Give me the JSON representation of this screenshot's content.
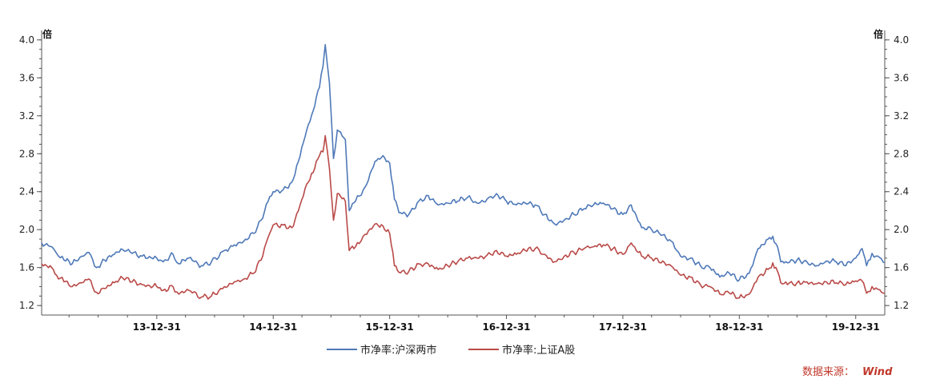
{
  "chart_data": {
    "type": "line",
    "y_unit_left": "倍",
    "y_unit_right": "倍",
    "ylim": [
      1.1,
      4.1
    ],
    "yticks": [
      "4.0",
      "3.6",
      "3.2",
      "2.8",
      "2.4",
      "2.0",
      "1.6",
      "1.2"
    ],
    "x_range": [
      "2013-01-04",
      "2020-03-31"
    ],
    "xticks": [
      {
        "date": "2013-12-31",
        "label": "13-12-31"
      },
      {
        "date": "2014-12-31",
        "label": "14-12-31"
      },
      {
        "date": "2015-12-31",
        "label": "15-12-31"
      },
      {
        "date": "2016-12-31",
        "label": "16-12-31"
      },
      {
        "date": "2017-12-31",
        "label": "17-12-31"
      },
      {
        "date": "2018-12-31",
        "label": "18-12-31"
      },
      {
        "date": "2019-12-31",
        "label": "19-12-31"
      }
    ],
    "series": [
      {
        "name": "市净率:沪深两市",
        "color": "#4f79b8",
        "points": [
          [
            "2013-01-04",
            1.86
          ],
          [
            "2013-02-05",
            1.82
          ],
          [
            "2013-02-20",
            1.75
          ],
          [
            "2013-03-15",
            1.68
          ],
          [
            "2013-04-10",
            1.64
          ],
          [
            "2013-05-10",
            1.72
          ],
          [
            "2013-06-01",
            1.76
          ],
          [
            "2013-06-25",
            1.6
          ],
          [
            "2013-07-20",
            1.68
          ],
          [
            "2013-08-20",
            1.74
          ],
          [
            "2013-09-15",
            1.79
          ],
          [
            "2013-10-15",
            1.75
          ],
          [
            "2013-11-15",
            1.72
          ],
          [
            "2013-12-31",
            1.7
          ],
          [
            "2014-01-20",
            1.66
          ],
          [
            "2014-02-20",
            1.74
          ],
          [
            "2014-03-10",
            1.64
          ],
          [
            "2014-04-10",
            1.7
          ],
          [
            "2014-05-20",
            1.62
          ],
          [
            "2014-06-20",
            1.66
          ],
          [
            "2014-07-31",
            1.78
          ],
          [
            "2014-08-31",
            1.84
          ],
          [
            "2014-09-30",
            1.88
          ],
          [
            "2014-10-31",
            1.96
          ],
          [
            "2014-11-28",
            2.12
          ],
          [
            "2014-12-15",
            2.3
          ],
          [
            "2014-12-31",
            2.4
          ],
          [
            "2015-01-31",
            2.42
          ],
          [
            "2015-02-27",
            2.5
          ],
          [
            "2015-03-20",
            2.72
          ],
          [
            "2015-04-15",
            3.05
          ],
          [
            "2015-05-05",
            3.25
          ],
          [
            "2015-05-25",
            3.5
          ],
          [
            "2015-06-05",
            3.72
          ],
          [
            "2015-06-12",
            3.95
          ],
          [
            "2015-06-25",
            3.55
          ],
          [
            "2015-07-08",
            2.75
          ],
          [
            "2015-07-20",
            3.05
          ],
          [
            "2015-08-14",
            2.95
          ],
          [
            "2015-08-26",
            2.2
          ],
          [
            "2015-09-15",
            2.3
          ],
          [
            "2015-10-15",
            2.45
          ],
          [
            "2015-11-15",
            2.72
          ],
          [
            "2015-12-10",
            2.78
          ],
          [
            "2015-12-31",
            2.7
          ],
          [
            "2016-01-15",
            2.32
          ],
          [
            "2016-01-29",
            2.18
          ],
          [
            "2016-02-29",
            2.16
          ],
          [
            "2016-03-31",
            2.3
          ],
          [
            "2016-04-30",
            2.36
          ],
          [
            "2016-05-31",
            2.26
          ],
          [
            "2016-06-30",
            2.28
          ],
          [
            "2016-07-31",
            2.3
          ],
          [
            "2016-08-31",
            2.34
          ],
          [
            "2016-09-30",
            2.28
          ],
          [
            "2016-10-31",
            2.32
          ],
          [
            "2016-11-30",
            2.38
          ],
          [
            "2016-12-31",
            2.3
          ],
          [
            "2017-01-31",
            2.26
          ],
          [
            "2017-02-28",
            2.28
          ],
          [
            "2017-03-31",
            2.26
          ],
          [
            "2017-04-30",
            2.16
          ],
          [
            "2017-05-31",
            2.06
          ],
          [
            "2017-06-30",
            2.1
          ],
          [
            "2017-07-31",
            2.16
          ],
          [
            "2017-08-31",
            2.22
          ],
          [
            "2017-09-30",
            2.26
          ],
          [
            "2017-10-31",
            2.28
          ],
          [
            "2017-11-30",
            2.22
          ],
          [
            "2017-12-31",
            2.16
          ],
          [
            "2018-01-26",
            2.26
          ],
          [
            "2018-02-28",
            2.02
          ],
          [
            "2018-03-31",
            2.0
          ],
          [
            "2018-04-30",
            1.94
          ],
          [
            "2018-05-31",
            1.88
          ],
          [
            "2018-06-30",
            1.72
          ],
          [
            "2018-07-31",
            1.7
          ],
          [
            "2018-08-31",
            1.62
          ],
          [
            "2018-09-30",
            1.6
          ],
          [
            "2018-10-31",
            1.5
          ],
          [
            "2018-11-30",
            1.54
          ],
          [
            "2018-12-31",
            1.47
          ],
          [
            "2019-01-31",
            1.54
          ],
          [
            "2019-02-28",
            1.8
          ],
          [
            "2019-03-31",
            1.9
          ],
          [
            "2019-04-15",
            1.93
          ],
          [
            "2019-04-30",
            1.82
          ],
          [
            "2019-05-10",
            1.66
          ],
          [
            "2019-05-31",
            1.65
          ],
          [
            "2019-06-30",
            1.68
          ],
          [
            "2019-07-31",
            1.66
          ],
          [
            "2019-08-31",
            1.62
          ],
          [
            "2019-09-30",
            1.67
          ],
          [
            "2019-10-31",
            1.66
          ],
          [
            "2019-11-30",
            1.62
          ],
          [
            "2019-12-31",
            1.7
          ],
          [
            "2020-01-20",
            1.8
          ],
          [
            "2020-02-03",
            1.62
          ],
          [
            "2020-02-20",
            1.75
          ],
          [
            "2020-03-10",
            1.72
          ],
          [
            "2020-03-31",
            1.65
          ]
        ]
      },
      {
        "name": "市净率:上证A股",
        "color": "#b94a48",
        "points": [
          [
            "2013-01-04",
            1.64
          ],
          [
            "2013-02-05",
            1.6
          ],
          [
            "2013-02-20",
            1.52
          ],
          [
            "2013-03-15",
            1.45
          ],
          [
            "2013-04-10",
            1.4
          ],
          [
            "2013-05-10",
            1.44
          ],
          [
            "2013-06-01",
            1.48
          ],
          [
            "2013-06-25",
            1.34
          ],
          [
            "2013-07-20",
            1.38
          ],
          [
            "2013-08-20",
            1.44
          ],
          [
            "2013-09-15",
            1.49
          ],
          [
            "2013-10-15",
            1.45
          ],
          [
            "2013-11-15",
            1.42
          ],
          [
            "2013-12-31",
            1.4
          ],
          [
            "2014-01-20",
            1.36
          ],
          [
            "2014-02-20",
            1.4
          ],
          [
            "2014-03-10",
            1.32
          ],
          [
            "2014-04-10",
            1.36
          ],
          [
            "2014-05-20",
            1.29
          ],
          [
            "2014-06-20",
            1.3
          ],
          [
            "2014-07-31",
            1.4
          ],
          [
            "2014-08-31",
            1.45
          ],
          [
            "2014-09-30",
            1.48
          ],
          [
            "2014-10-31",
            1.54
          ],
          [
            "2014-11-28",
            1.72
          ],
          [
            "2014-12-15",
            1.92
          ],
          [
            "2014-12-31",
            2.05
          ],
          [
            "2015-01-31",
            2.05
          ],
          [
            "2015-02-27",
            2.02
          ],
          [
            "2015-03-20",
            2.2
          ],
          [
            "2015-04-15",
            2.48
          ],
          [
            "2015-05-05",
            2.6
          ],
          [
            "2015-05-25",
            2.78
          ],
          [
            "2015-06-05",
            2.82
          ],
          [
            "2015-06-12",
            2.99
          ],
          [
            "2015-06-25",
            2.65
          ],
          [
            "2015-07-08",
            2.1
          ],
          [
            "2015-07-20",
            2.38
          ],
          [
            "2015-08-14",
            2.3
          ],
          [
            "2015-08-26",
            1.78
          ],
          [
            "2015-09-15",
            1.82
          ],
          [
            "2015-10-15",
            1.95
          ],
          [
            "2015-11-15",
            2.06
          ],
          [
            "2015-12-10",
            2.04
          ],
          [
            "2015-12-31",
            1.96
          ],
          [
            "2016-01-15",
            1.62
          ],
          [
            "2016-01-29",
            1.55
          ],
          [
            "2016-02-29",
            1.56
          ],
          [
            "2016-03-31",
            1.64
          ],
          [
            "2016-04-30",
            1.64
          ],
          [
            "2016-05-31",
            1.58
          ],
          [
            "2016-06-30",
            1.62
          ],
          [
            "2016-07-31",
            1.66
          ],
          [
            "2016-08-31",
            1.7
          ],
          [
            "2016-09-30",
            1.7
          ],
          [
            "2016-10-31",
            1.73
          ],
          [
            "2016-11-30",
            1.78
          ],
          [
            "2016-12-31",
            1.72
          ],
          [
            "2017-01-31",
            1.74
          ],
          [
            "2017-02-28",
            1.78
          ],
          [
            "2017-03-31",
            1.8
          ],
          [
            "2017-04-30",
            1.74
          ],
          [
            "2017-05-31",
            1.66
          ],
          [
            "2017-06-30",
            1.72
          ],
          [
            "2017-07-31",
            1.76
          ],
          [
            "2017-08-31",
            1.8
          ],
          [
            "2017-09-30",
            1.82
          ],
          [
            "2017-10-31",
            1.84
          ],
          [
            "2017-11-30",
            1.8
          ],
          [
            "2017-12-31",
            1.74
          ],
          [
            "2018-01-26",
            1.86
          ],
          [
            "2018-02-28",
            1.72
          ],
          [
            "2018-03-31",
            1.7
          ],
          [
            "2018-04-30",
            1.65
          ],
          [
            "2018-05-31",
            1.62
          ],
          [
            "2018-06-30",
            1.52
          ],
          [
            "2018-07-31",
            1.5
          ],
          [
            "2018-08-31",
            1.42
          ],
          [
            "2018-09-30",
            1.4
          ],
          [
            "2018-10-31",
            1.32
          ],
          [
            "2018-11-30",
            1.33
          ],
          [
            "2018-12-31",
            1.28
          ],
          [
            "2019-01-31",
            1.32
          ],
          [
            "2019-02-28",
            1.5
          ],
          [
            "2019-03-31",
            1.58
          ],
          [
            "2019-04-15",
            1.65
          ],
          [
            "2019-04-30",
            1.56
          ],
          [
            "2019-05-10",
            1.44
          ],
          [
            "2019-05-31",
            1.42
          ],
          [
            "2019-06-30",
            1.44
          ],
          [
            "2019-07-31",
            1.45
          ],
          [
            "2019-08-31",
            1.43
          ],
          [
            "2019-09-30",
            1.45
          ],
          [
            "2019-10-31",
            1.44
          ],
          [
            "2019-11-30",
            1.42
          ],
          [
            "2019-12-31",
            1.46
          ],
          [
            "2020-01-20",
            1.46
          ],
          [
            "2020-02-03",
            1.33
          ],
          [
            "2020-02-20",
            1.4
          ],
          [
            "2020-03-10",
            1.37
          ],
          [
            "2020-03-31",
            1.33
          ]
        ]
      }
    ],
    "legend_position": "bottom-center",
    "grid": false
  },
  "source": {
    "label": "数据来源：",
    "name": "Wind"
  }
}
